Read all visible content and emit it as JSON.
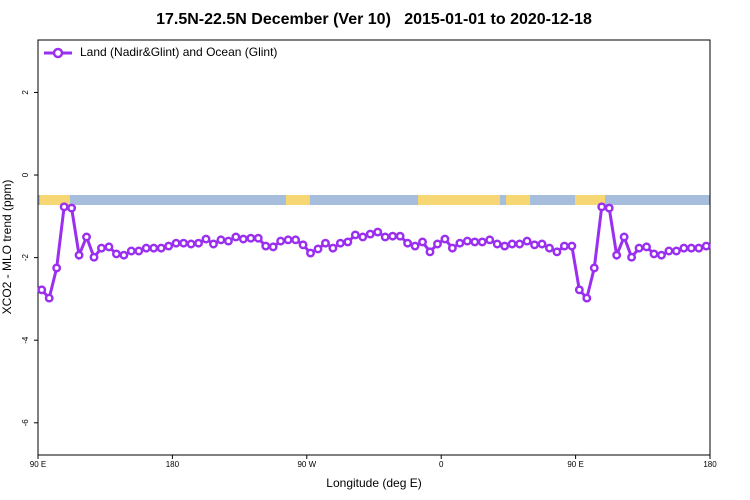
{
  "chart_data": {
    "type": "line",
    "title": "17.5N-22.5N December (Ver 10)   2015-01-01 to 2020-12-18",
    "x_label": "Longitude (deg E)",
    "y_label": "XCO2 - MLO trend (ppm)",
    "xlim": [
      90,
      540
    ],
    "ylim": [
      -6.78,
      3.27
    ],
    "xticks": [
      {
        "value": 90,
        "label": "90 E"
      },
      {
        "value": 180,
        "label": "180"
      },
      {
        "value": 270,
        "label": "90 W"
      },
      {
        "value": 360,
        "label": "0"
      },
      {
        "value": 450,
        "label": "90 E"
      },
      {
        "value": 540,
        "label": "180"
      }
    ],
    "yticks": [
      -6,
      -4,
      -2,
      0,
      2
    ],
    "grid": false,
    "legend_position": "top-left",
    "x": [
      92.5,
      97.5,
      102.5,
      107.5,
      112.5,
      117.5,
      122.5,
      127.5,
      132.5,
      137.5,
      142.5,
      147.5,
      152.5,
      157.5,
      162.5,
      167.5,
      172.5,
      177.5,
      182.5,
      187.5,
      192.5,
      197.5,
      202.5,
      207.5,
      212.5,
      217.5,
      222.5,
      227.5,
      232.5,
      237.5,
      242.5,
      247.5,
      252.5,
      257.5,
      262.5,
      267.5,
      272.5,
      277.5,
      282.5,
      287.5,
      292.5,
      297.5,
      302.5,
      307.5,
      312.5,
      317.5,
      322.5,
      327.5,
      332.5,
      337.5,
      342.5,
      347.5,
      352.5,
      357.5,
      362.5,
      367.5,
      372.5,
      377.5,
      382.5,
      387.5,
      392.5,
      397.5,
      402.5,
      407.5,
      412.5,
      417.5,
      422.5,
      427.5,
      432.5,
      437.5,
      442.5,
      447.5,
      452.5,
      457.5,
      462.5,
      467.5,
      472.5,
      477.5,
      482.5,
      487.5,
      492.5,
      497.5,
      502.5,
      507.5,
      512.5,
      517.5,
      522.5,
      527.5,
      532.5,
      537.5
    ],
    "series": [
      {
        "name": "Land (Nadir&Glint) and Ocean (Glint)",
        "color": "#9b2ff0",
        "values": [
          -2.78,
          -2.98,
          -2.25,
          -0.77,
          -0.8,
          -1.94,
          -1.5,
          -1.99,
          -1.77,
          -1.74,
          -1.91,
          -1.94,
          -1.84,
          -1.84,
          -1.77,
          -1.77,
          -1.77,
          -1.72,
          -1.65,
          -1.65,
          -1.67,
          -1.65,
          -1.55,
          -1.67,
          -1.57,
          -1.6,
          -1.5,
          -1.55,
          -1.53,
          -1.53,
          -1.72,
          -1.74,
          -1.6,
          -1.57,
          -1.57,
          -1.69,
          -1.89,
          -1.79,
          -1.65,
          -1.77,
          -1.65,
          -1.62,
          -1.45,
          -1.5,
          -1.43,
          -1.38,
          -1.5,
          -1.48,
          -1.48,
          -1.65,
          -1.72,
          -1.62,
          -1.86,
          -1.67,
          -1.55,
          -1.77,
          -1.65,
          -1.6,
          -1.62,
          -1.62,
          -1.57,
          -1.67,
          -1.72,
          -1.67,
          -1.67,
          -1.6,
          -1.69,
          -1.67,
          -1.77,
          -1.86,
          -1.72,
          -1.72,
          -2.78,
          -2.98,
          -2.25,
          -0.77,
          -0.8,
          -1.94,
          -1.5,
          -1.99,
          -1.77,
          -1.74,
          -1.91,
          -1.94,
          -1.84,
          -1.84,
          -1.77,
          -1.77,
          -1.77,
          -1.72
        ]
      }
    ]
  }
}
